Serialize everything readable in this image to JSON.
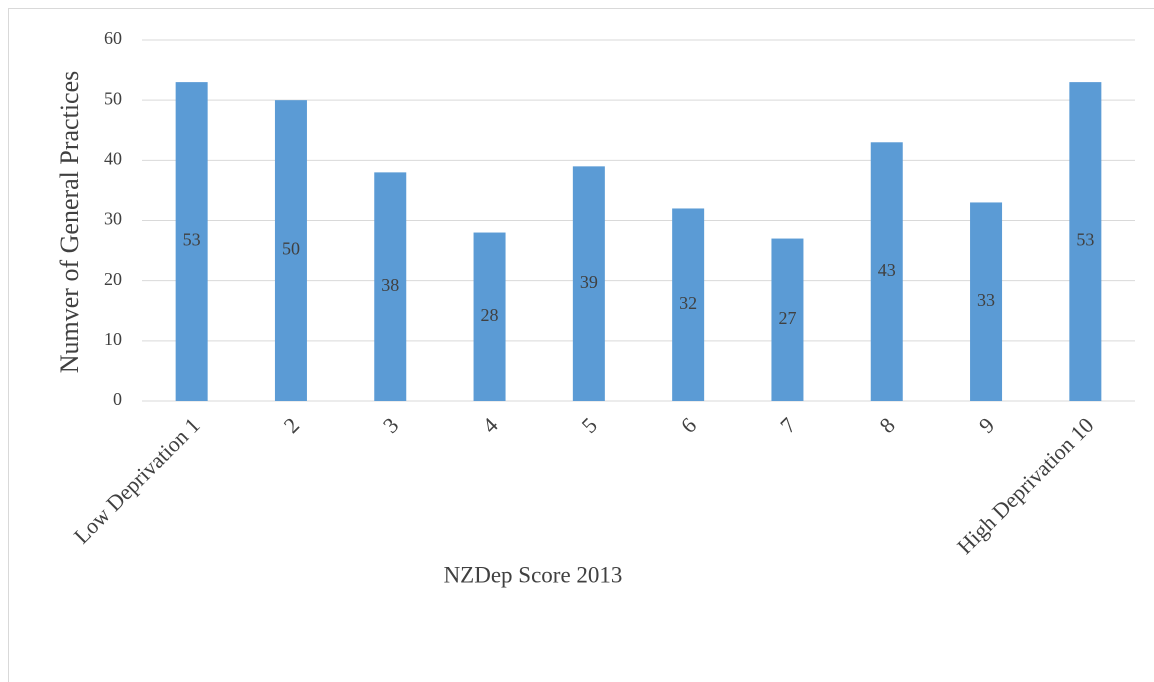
{
  "chart_data": {
    "type": "bar",
    "categories": [
      "Low Deprivation 1",
      "2",
      "3",
      "4",
      "5",
      "6",
      "7",
      "8",
      "9",
      "High Deprivation 10"
    ],
    "values": [
      53,
      50,
      38,
      28,
      39,
      32,
      27,
      43,
      33,
      53
    ],
    "color": "#5b9bd5",
    "x_label": "NZDep Score 2013",
    "y_label": "Numver of General Practices",
    "ylim": [
      0,
      60
    ],
    "yticks": [
      0,
      10,
      20,
      30,
      40,
      50,
      60
    ],
    "grid": true,
    "data_labels": true
  }
}
